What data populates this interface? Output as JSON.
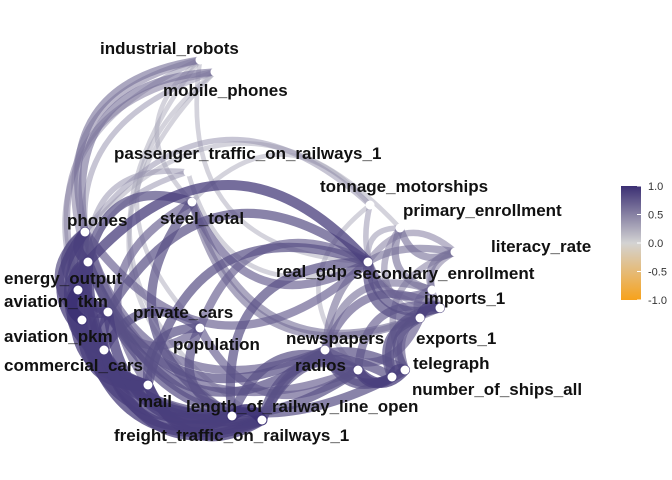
{
  "legend": {
    "colors": {
      "high": "#3b2f73",
      "mid": "#d3d3d3",
      "low": "#f7a21b"
    },
    "ticks": [
      "1.0",
      "0.5",
      "0.0",
      "-0.5",
      "-1.0"
    ],
    "tick_values": [
      1.0,
      0.5,
      0.0,
      -0.5,
      -1.0
    ],
    "range": [
      -1.0,
      1.0
    ]
  },
  "nodes": [
    {
      "id": "industrial_robots",
      "label": "industrial_robots"
    },
    {
      "id": "mobile_phones",
      "label": "mobile_phones"
    },
    {
      "id": "passenger_traffic_on_railways_1",
      "label": "passenger_traffic_on_railways_1"
    },
    {
      "id": "tonnage_motorships",
      "label": "tonnage_motorships"
    },
    {
      "id": "primary_enrollment",
      "label": "primary_enrollment"
    },
    {
      "id": "phones",
      "label": "phones"
    },
    {
      "id": "steel_total",
      "label": "steel_total"
    },
    {
      "id": "literacy_rate",
      "label": "literacy_rate"
    },
    {
      "id": "real_gdp",
      "label": "real_gdp"
    },
    {
      "id": "energy_output",
      "label": "energy_output"
    },
    {
      "id": "secondary_enrollment",
      "label": "secondary_enrollment"
    },
    {
      "id": "aviation_tkm",
      "label": "aviation_tkm"
    },
    {
      "id": "imports_1",
      "label": "imports_1"
    },
    {
      "id": "private_cars",
      "label": "private_cars"
    },
    {
      "id": "aviation_pkm",
      "label": "aviation_pkm"
    },
    {
      "id": "newspapers",
      "label": "newspapers"
    },
    {
      "id": "exports_1",
      "label": "exports_1"
    },
    {
      "id": "population",
      "label": "population"
    },
    {
      "id": "commercial_cars",
      "label": "commercial_cars"
    },
    {
      "id": "radios",
      "label": "radios"
    },
    {
      "id": "telegraph",
      "label": "telegraph"
    },
    {
      "id": "number_of_ships_all",
      "label": "number_of_ships_all"
    },
    {
      "id": "mail",
      "label": "mail"
    },
    {
      "id": "length_of_railway_line_open",
      "label": "length_of_railway_line_open"
    },
    {
      "id": "freight_traffic_on_railways_1",
      "label": "freight_traffic_on_railways_1"
    }
  ],
  "edges": [
    {
      "from": "industrial_robots",
      "to": "phones",
      "weight": 0.6
    },
    {
      "from": "industrial_robots",
      "to": "energy_output",
      "weight": 0.5
    },
    {
      "from": "industrial_robots",
      "to": "steel_total",
      "weight": 0.3
    },
    {
      "from": "industrial_robots",
      "to": "commercial_cars",
      "weight": 0.4
    },
    {
      "from": "industrial_robots",
      "to": "real_gdp",
      "weight": 0.3
    },
    {
      "from": "industrial_robots",
      "to": "length_of_railway_line_open",
      "weight": 0.3
    },
    {
      "from": "mobile_phones",
      "to": "phones",
      "weight": 0.6
    },
    {
      "from": "mobile_phones",
      "to": "aviation_tkm",
      "weight": 0.5
    },
    {
      "from": "mobile_phones",
      "to": "population",
      "weight": 0.3
    },
    {
      "from": "mobile_phones",
      "to": "freight_traffic_on_railways_1",
      "weight": 0.3
    },
    {
      "from": "mobile_phones",
      "to": "private_cars",
      "weight": 0.4
    },
    {
      "from": "passenger_traffic_on_railways_1",
      "to": "energy_output",
      "weight": 0.4
    },
    {
      "from": "passenger_traffic_on_railways_1",
      "to": "commercial_cars",
      "weight": 0.4
    },
    {
      "from": "passenger_traffic_on_railways_1",
      "to": "real_gdp",
      "weight": 0.3
    },
    {
      "from": "tonnage_motorships",
      "to": "imports_1",
      "weight": 0.4
    },
    {
      "from": "tonnage_motorships",
      "to": "phones",
      "weight": 0.4
    },
    {
      "from": "tonnage_motorships",
      "to": "steel_total",
      "weight": 0.3
    },
    {
      "from": "tonnage_motorships",
      "to": "radios",
      "weight": 0.3
    },
    {
      "from": "primary_enrollment",
      "to": "literacy_rate",
      "weight": 0.6
    },
    {
      "from": "primary_enrollment",
      "to": "secondary_enrollment",
      "weight": 0.6
    },
    {
      "from": "primary_enrollment",
      "to": "real_gdp",
      "weight": 0.4
    },
    {
      "from": "primary_enrollment",
      "to": "phones",
      "weight": 0.3
    },
    {
      "from": "primary_enrollment",
      "to": "exports_1",
      "weight": 0.5
    },
    {
      "from": "phones",
      "to": "energy_output",
      "weight": 0.9
    },
    {
      "from": "phones",
      "to": "aviation_tkm",
      "weight": 0.8
    },
    {
      "from": "phones",
      "to": "aviation_pkm",
      "weight": 0.8
    },
    {
      "from": "phones",
      "to": "commercial_cars",
      "weight": 0.9
    },
    {
      "from": "phones",
      "to": "private_cars",
      "weight": 0.8
    },
    {
      "from": "phones",
      "to": "mail",
      "weight": 0.8
    },
    {
      "from": "phones",
      "to": "real_gdp",
      "weight": 0.7
    },
    {
      "from": "phones",
      "to": "newspapers",
      "weight": 0.7
    },
    {
      "from": "phones",
      "to": "radios",
      "weight": 0.7
    },
    {
      "from": "phones",
      "to": "length_of_railway_line_open",
      "weight": 0.8
    },
    {
      "from": "phones",
      "to": "freight_traffic_on_railways_1",
      "weight": 0.8
    },
    {
      "from": "steel_total",
      "to": "energy_output",
      "weight": 0.8
    },
    {
      "from": "steel_total",
      "to": "real_gdp",
      "weight": 0.7
    },
    {
      "from": "steel_total",
      "to": "imports_1",
      "weight": 0.6
    },
    {
      "from": "steel_total",
      "to": "exports_1",
      "weight": 0.6
    },
    {
      "from": "steel_total",
      "to": "freight_traffic_on_railways_1",
      "weight": 0.8
    },
    {
      "from": "steel_total",
      "to": "mail",
      "weight": 0.7
    },
    {
      "from": "literacy_rate",
      "to": "secondary_enrollment",
      "weight": 0.6
    },
    {
      "from": "literacy_rate",
      "to": "real_gdp",
      "weight": 0.5
    },
    {
      "from": "literacy_rate",
      "to": "imports_1",
      "weight": 0.5
    },
    {
      "from": "literacy_rate",
      "to": "newspapers",
      "weight": 0.6
    },
    {
      "from": "literacy_rate",
      "to": "telegraph",
      "weight": 0.5
    },
    {
      "from": "real_gdp",
      "to": "energy_output",
      "weight": 0.9
    },
    {
      "from": "real_gdp",
      "to": "imports_1",
      "weight": 0.8
    },
    {
      "from": "real_gdp",
      "to": "exports_1",
      "weight": 0.8
    },
    {
      "from": "real_gdp",
      "to": "population",
      "weight": 0.7
    },
    {
      "from": "real_gdp",
      "to": "private_cars",
      "weight": 0.8
    },
    {
      "from": "real_gdp",
      "to": "secondary_enrollment",
      "weight": 0.7
    },
    {
      "from": "real_gdp",
      "to": "freight_traffic_on_railways_1",
      "weight": 0.8
    },
    {
      "from": "real_gdp",
      "to": "mail",
      "weight": 0.8
    },
    {
      "from": "energy_output",
      "to": "aviation_tkm",
      "weight": 0.9
    },
    {
      "from": "energy_output",
      "to": "aviation_pkm",
      "weight": 0.9
    },
    {
      "from": "energy_output",
      "to": "commercial_cars",
      "weight": 0.9
    },
    {
      "from": "energy_output",
      "to": "private_cars",
      "weight": 0.9
    },
    {
      "from": "energy_output",
      "to": "mail",
      "weight": 0.9
    },
    {
      "from": "energy_output",
      "to": "freight_traffic_on_railways_1",
      "weight": 0.9
    },
    {
      "from": "energy_output",
      "to": "length_of_railway_line_open",
      "weight": 0.9
    },
    {
      "from": "energy_output",
      "to": "newspapers",
      "weight": 0.8
    },
    {
      "from": "energy_output",
      "to": "number_of_ships_all",
      "weight": 0.8
    },
    {
      "from": "secondary_enrollment",
      "to": "imports_1",
      "weight": 0.6
    },
    {
      "from": "secondary_enrollment",
      "to": "exports_1",
      "weight": 0.6
    },
    {
      "from": "secondary_enrollment",
      "to": "newspapers",
      "weight": 0.6
    },
    {
      "from": "aviation_tkm",
      "to": "aviation_pkm",
      "weight": 1.0
    },
    {
      "from": "aviation_tkm",
      "to": "commercial_cars",
      "weight": 0.9
    },
    {
      "from": "aviation_tkm",
      "to": "private_cars",
      "weight": 0.9
    },
    {
      "from": "aviation_tkm",
      "to": "mail",
      "weight": 0.9
    },
    {
      "from": "aviation_tkm",
      "to": "freight_traffic_on_railways_1",
      "weight": 0.9
    },
    {
      "from": "imports_1",
      "to": "exports_1",
      "weight": 0.9
    },
    {
      "from": "imports_1",
      "to": "telegraph",
      "weight": 0.7
    },
    {
      "from": "imports_1",
      "to": "number_of_ships_all",
      "weight": 0.8
    },
    {
      "from": "imports_1",
      "to": "newspapers",
      "weight": 0.7
    },
    {
      "from": "imports_1",
      "to": "radios",
      "weight": 0.7
    },
    {
      "from": "private_cars",
      "to": "population",
      "weight": 0.7
    },
    {
      "from": "private_cars",
      "to": "commercial_cars",
      "weight": 0.9
    },
    {
      "from": "private_cars",
      "to": "mail",
      "weight": 0.9
    },
    {
      "from": "private_cars",
      "to": "newspapers",
      "weight": 0.8
    },
    {
      "from": "private_cars",
      "to": "radios",
      "weight": 0.8
    },
    {
      "from": "private_cars",
      "to": "length_of_railway_line_open",
      "weight": 0.9
    },
    {
      "from": "aviation_pkm",
      "to": "commercial_cars",
      "weight": 0.9
    },
    {
      "from": "aviation_pkm",
      "to": "mail",
      "weight": 0.9
    },
    {
      "from": "aviation_pkm",
      "to": "length_of_railway_line_open",
      "weight": 0.9
    },
    {
      "from": "newspapers",
      "to": "radios",
      "weight": 0.8
    },
    {
      "from": "newspapers",
      "to": "telegraph",
      "weight": 0.8
    },
    {
      "from": "newspapers",
      "to": "number_of_ships_all",
      "weight": 0.8
    },
    {
      "from": "newspapers",
      "to": "exports_1",
      "weight": 0.7
    },
    {
      "from": "exports_1",
      "to": "telegraph",
      "weight": 0.8
    },
    {
      "from": "exports_1",
      "to": "number_of_ships_all",
      "weight": 0.8
    },
    {
      "from": "population",
      "to": "commercial_cars",
      "weight": 0.8
    },
    {
      "from": "population",
      "to": "mail",
      "weight": 0.8
    },
    {
      "from": "population",
      "to": "radios",
      "weight": 0.7
    },
    {
      "from": "population",
      "to": "freight_traffic_on_railways_1",
      "weight": 0.8
    },
    {
      "from": "commercial_cars",
      "to": "mail",
      "weight": 0.9
    },
    {
      "from": "commercial_cars",
      "to": "freight_traffic_on_railways_1",
      "weight": 0.9
    },
    {
      "from": "commercial_cars",
      "to": "length_of_railway_line_open",
      "weight": 0.9
    },
    {
      "from": "radios",
      "to": "telegraph",
      "weight": 0.9
    },
    {
      "from": "radios",
      "to": "number_of_ships_all",
      "weight": 0.9
    },
    {
      "from": "radios",
      "to": "length_of_railway_line_open",
      "weight": 0.8
    },
    {
      "from": "radios",
      "to": "freight_traffic_on_railways_1",
      "weight": 0.8
    },
    {
      "from": "telegraph",
      "to": "number_of_ships_all",
      "weight": 0.9
    },
    {
      "from": "telegraph",
      "to": "length_of_railway_line_open",
      "weight": 0.8
    },
    {
      "from": "mail",
      "to": "length_of_railway_line_open",
      "weight": 0.9
    },
    {
      "from": "mail",
      "to": "freight_traffic_on_railways_1",
      "weight": 0.9
    },
    {
      "from": "length_of_railway_line_open",
      "to": "freight_traffic_on_railways_1",
      "weight": 1.0
    },
    {
      "from": "number_of_ships_all",
      "to": "length_of_railway_line_open",
      "weight": 0.8
    }
  ]
}
